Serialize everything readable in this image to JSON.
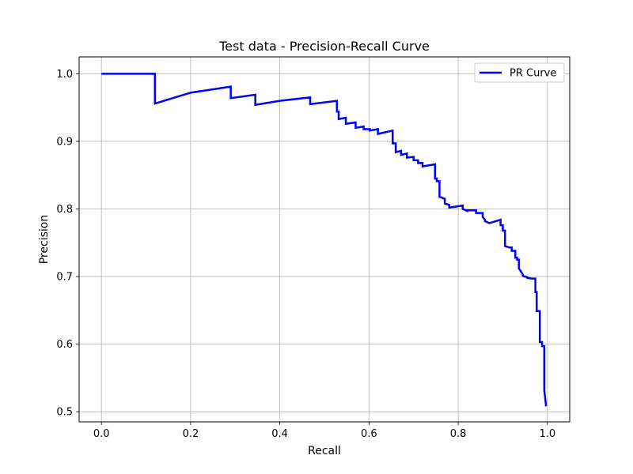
{
  "chart_data": {
    "type": "line",
    "title": "Test data - Precision-Recall Curve",
    "xlabel": "Recall",
    "ylabel": "Precision",
    "xlim": [
      -0.05,
      1.05
    ],
    "ylim": [
      0.485,
      1.025
    ],
    "xticks": [
      0.0,
      0.2,
      0.4,
      0.6,
      0.8,
      1.0
    ],
    "xtick_labels": [
      "0.0",
      "0.2",
      "0.4",
      "0.6",
      "0.8",
      "1.0"
    ],
    "yticks": [
      0.5,
      0.6,
      0.7,
      0.8,
      0.9,
      1.0
    ],
    "ytick_labels": [
      "0.5",
      "0.6",
      "0.7",
      "0.8",
      "0.9",
      "1.0"
    ],
    "grid": true,
    "legend_position": "upper-right",
    "series": [
      {
        "name": "PR Curve",
        "color": "#0000ff",
        "recall": [
          0.0,
          0.12,
          0.12,
          0.2,
          0.29,
          0.29,
          0.345,
          0.345,
          0.4,
          0.468,
          0.468,
          0.528,
          0.528,
          0.532,
          0.532,
          0.548,
          0.548,
          0.57,
          0.57,
          0.588,
          0.588,
          0.602,
          0.602,
          0.62,
          0.62,
          0.653,
          0.653,
          0.66,
          0.66,
          0.672,
          0.672,
          0.685,
          0.685,
          0.7,
          0.7,
          0.71,
          0.71,
          0.72,
          0.72,
          0.748,
          0.748,
          0.752,
          0.752,
          0.758,
          0.758,
          0.77,
          0.77,
          0.78,
          0.78,
          0.81,
          0.81,
          0.82,
          0.82,
          0.84,
          0.84,
          0.855,
          0.855,
          0.86,
          0.86,
          0.87,
          0.87,
          0.895,
          0.895,
          0.9,
          0.9,
          0.905,
          0.905,
          0.915,
          0.915,
          0.92,
          0.92,
          0.928,
          0.928,
          0.932,
          0.932,
          0.936,
          0.936,
          0.945,
          0.945,
          0.955,
          0.955,
          0.965,
          0.965,
          0.973,
          0.973,
          0.976,
          0.976,
          0.983,
          0.983,
          0.988,
          0.988,
          0.993,
          0.993,
          0.997
        ],
        "precision": [
          1.0,
          1.0,
          0.956,
          0.972,
          0.981,
          0.964,
          0.969,
          0.954,
          0.96,
          0.965,
          0.955,
          0.96,
          0.944,
          0.944,
          0.933,
          0.935,
          0.926,
          0.928,
          0.92,
          0.922,
          0.918,
          0.918,
          0.916,
          0.918,
          0.911,
          0.916,
          0.897,
          0.897,
          0.884,
          0.886,
          0.88,
          0.882,
          0.876,
          0.877,
          0.872,
          0.872,
          0.868,
          0.868,
          0.863,
          0.866,
          0.845,
          0.845,
          0.841,
          0.841,
          0.818,
          0.815,
          0.808,
          0.806,
          0.802,
          0.805,
          0.8,
          0.797,
          0.798,
          0.798,
          0.794,
          0.794,
          0.788,
          0.784,
          0.782,
          0.779,
          0.779,
          0.784,
          0.776,
          0.776,
          0.768,
          0.768,
          0.745,
          0.743,
          0.743,
          0.743,
          0.738,
          0.738,
          0.728,
          0.728,
          0.725,
          0.725,
          0.712,
          0.703,
          0.701,
          0.699,
          0.698,
          0.697,
          0.697,
          0.697,
          0.677,
          0.677,
          0.649,
          0.649,
          0.603,
          0.603,
          0.597,
          0.597,
          0.532,
          0.508
        ]
      }
    ]
  }
}
